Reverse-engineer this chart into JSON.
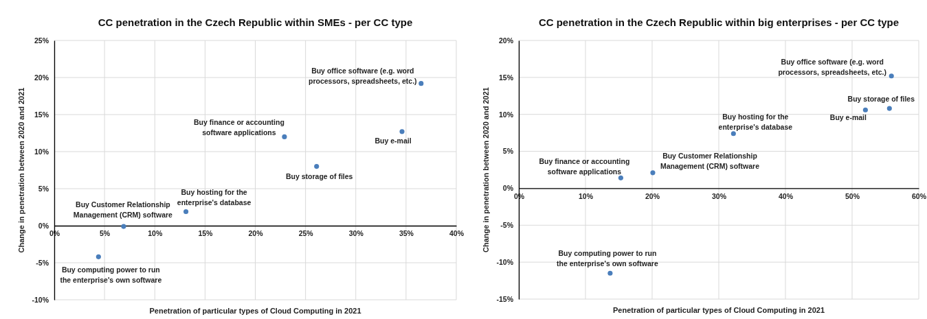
{
  "chart_data": [
    {
      "type": "scatter",
      "title": "CC penetration in the Czech Republic within SMEs - per CC type",
      "xlabel": "Penetration of particular types of Cloud Computing  in 2021",
      "ylabel": "Change in penetration between 2020 and 2021",
      "x": [
        36.5,
        34.6,
        22.9,
        26.1,
        13.1,
        6.9,
        4.4
      ],
      "series": [
        {
          "color": "#4a7ebb",
          "values": [
            19.2,
            12.7,
            12.0,
            8.0,
            1.9,
            -0.1,
            -4.2
          ]
        }
      ],
      "xlim": [
        0,
        40
      ],
      "xticks": [
        {
          "value": 0,
          "label": "0%"
        },
        {
          "value": 5,
          "label": "5%"
        },
        {
          "value": 10,
          "label": "10%"
        },
        {
          "value": 15,
          "label": "15%"
        },
        {
          "value": 20,
          "label": "20%"
        },
        {
          "value": 25,
          "label": "25%"
        },
        {
          "value": 30,
          "label": "30%"
        },
        {
          "value": 35,
          "label": "35%"
        },
        {
          "value": 40,
          "label": "40%"
        }
      ],
      "ylim": [
        -10,
        25
      ],
      "yticks": [
        {
          "value": -10,
          "label": "-10%"
        },
        {
          "value": -5,
          "label": "-5%"
        },
        {
          "value": 0,
          "label": "0%"
        },
        {
          "value": 5,
          "label": "5%"
        },
        {
          "value": 10,
          "label": "10%"
        },
        {
          "value": 15,
          "label": "15%"
        },
        {
          "value": 20,
          "label": "20%"
        },
        {
          "value": 25,
          "label": "25%"
        }
      ],
      "grid": true,
      "marker": "circle",
      "annotations": [
        {
          "text": "Buy office software (e.g. word processors, spreadsheets, etc.)",
          "x": 36.5,
          "y": 19.2
        },
        {
          "text": "Buy e-mail",
          "x": 34.6,
          "y": 12.7
        },
        {
          "text": "Buy finance or accounting software applications",
          "x": 22.9,
          "y": 12.0
        },
        {
          "text": "Buy storage of files",
          "x": 26.1,
          "y": 8.0
        },
        {
          "text": "Buy hosting for the enterprise's database",
          "x": 13.1,
          "y": 1.9
        },
        {
          "text": "Buy Customer Relationship Management (CRM) software",
          "x": 6.9,
          "y": -0.1
        },
        {
          "text": "Buy computing power to run the enterprise's own software",
          "x": 4.4,
          "y": -4.2
        }
      ]
    },
    {
      "type": "scatter",
      "title": "CC penetration in the Czech Republic within big enterprises - per CC type",
      "xlabel": "Penetration of particular types of Cloud Computing  in 2021",
      "ylabel": "Change in penetration between 2020 and 2021",
      "x": [
        55.9,
        55.6,
        52.0,
        32.2,
        20.1,
        15.3,
        13.7
      ],
      "series": [
        {
          "color": "#4a7ebb",
          "values": [
            15.2,
            10.8,
            10.6,
            7.4,
            2.1,
            1.4,
            -11.5
          ]
        }
      ],
      "xlim": [
        0,
        60
      ],
      "xticks": [
        {
          "value": 0,
          "label": "0%"
        },
        {
          "value": 10,
          "label": "10%"
        },
        {
          "value": 20,
          "label": "20%"
        },
        {
          "value": 30,
          "label": "30%"
        },
        {
          "value": 40,
          "label": "40%"
        },
        {
          "value": 50,
          "label": "50%"
        },
        {
          "value": 60,
          "label": "60%"
        }
      ],
      "ylim": [
        -15,
        20
      ],
      "yticks": [
        {
          "value": -15,
          "label": "-15%"
        },
        {
          "value": -10,
          "label": "-10%"
        },
        {
          "value": -5,
          "label": "-5%"
        },
        {
          "value": 0,
          "label": "0%"
        },
        {
          "value": 5,
          "label": "5%"
        },
        {
          "value": 10,
          "label": "10%"
        },
        {
          "value": 15,
          "label": "15%"
        },
        {
          "value": 20,
          "label": "20%"
        }
      ],
      "grid": true,
      "marker": "circle",
      "annotations": [
        {
          "text": "Buy office software (e.g. word processors, spreadsheets, etc.)",
          "x": 55.9,
          "y": 15.2
        },
        {
          "text": "Buy storage of files",
          "x": 55.6,
          "y": 10.8
        },
        {
          "text": "Buy e-mail",
          "x": 52.0,
          "y": 10.6
        },
        {
          "text": "Buy hosting for the enterprise's database",
          "x": 32.2,
          "y": 7.4
        },
        {
          "text": "Buy Customer Relationship Management (CRM) software",
          "x": 20.1,
          "y": 2.1
        },
        {
          "text": "Buy finance or accounting software applications",
          "x": 15.3,
          "y": 1.4
        },
        {
          "text": "Buy computing power to run the enterprise's own software",
          "x": 13.7,
          "y": -11.5
        }
      ]
    }
  ]
}
